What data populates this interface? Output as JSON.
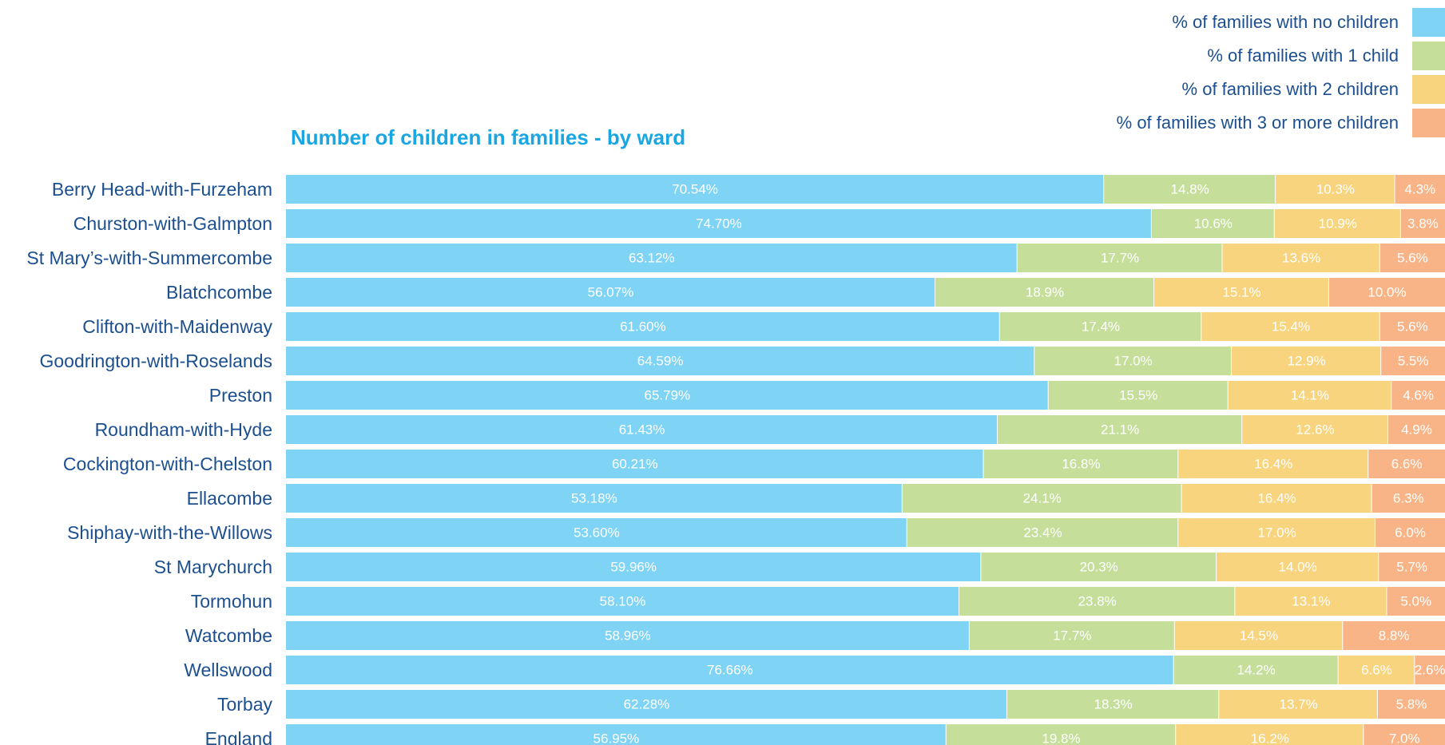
{
  "chart_data": {
    "type": "bar",
    "orientation": "horizontal",
    "stacked": true,
    "title": "Number of children in families - by ward",
    "categories": [
      "Berry Head-with-Furzeham",
      "Churston-with-Galmpton",
      "St Mary’s-with-Summercombe",
      "Blatchcombe",
      "Clifton-with-Maidenway",
      "Goodrington-with-Roselands",
      "Preston",
      "Roundham-with-Hyde",
      "Cockington-with-Chelston",
      "Ellacombe",
      "Shiphay-with-the-Willows",
      "St Marychurch",
      "Tormohun",
      "Watcombe",
      "Wellswood",
      "Torbay",
      "England"
    ],
    "series": [
      {
        "name": "% of families with no children",
        "color": "#7fd4f5",
        "values": [
          70.54,
          74.7,
          63.12,
          56.07,
          61.6,
          64.59,
          65.79,
          61.43,
          60.21,
          53.18,
          53.6,
          59.96,
          58.1,
          58.96,
          76.66,
          62.28,
          56.95
        ],
        "labels": [
          "70.54%",
          "74.70%",
          "63.12%",
          "56.07%",
          "61.60%",
          "64.59%",
          "65.79%",
          "61.43%",
          "60.21%",
          "53.18%",
          "53.60%",
          "59.96%",
          "58.10%",
          "58.96%",
          "76.66%",
          "62.28%",
          "56.95%"
        ]
      },
      {
        "name": "% of families with 1 child",
        "color": "#c5df9b",
        "values": [
          14.8,
          10.6,
          17.7,
          18.9,
          17.4,
          17.0,
          15.5,
          21.1,
          16.8,
          24.1,
          23.4,
          20.3,
          23.8,
          17.7,
          14.2,
          18.3,
          19.8
        ],
        "labels": [
          "14.8%",
          "10.6%",
          "17.7%",
          "18.9%",
          "17.4%",
          "17.0%",
          "15.5%",
          "21.1%",
          "16.8%",
          "24.1%",
          "23.4%",
          "20.3%",
          "23.8%",
          "17.7%",
          "14.2%",
          "18.3%",
          "19.8%"
        ]
      },
      {
        "name": "% of families with 2 children",
        "color": "#f8d47f",
        "values": [
          10.3,
          10.9,
          13.6,
          15.1,
          15.4,
          12.9,
          14.1,
          12.6,
          16.4,
          16.4,
          17.0,
          14.0,
          13.1,
          14.5,
          6.6,
          13.7,
          16.2
        ],
        "labels": [
          "10.3%",
          "10.9%",
          "13.6%",
          "15.1%",
          "15.4%",
          "12.9%",
          "14.1%",
          "12.6%",
          "16.4%",
          "16.4%",
          "17.0%",
          "14.0%",
          "13.1%",
          "14.5%",
          "6.6%",
          "13.7%",
          "16.2%"
        ]
      },
      {
        "name": "% of families with 3 or more children",
        "color": "#f8b486",
        "values": [
          4.3,
          3.8,
          5.6,
          10.0,
          5.6,
          5.5,
          4.6,
          4.9,
          6.6,
          6.3,
          6.0,
          5.7,
          5.0,
          8.8,
          2.6,
          5.8,
          7.0
        ],
        "labels": [
          "4.3%",
          "3.8%",
          "5.6%",
          "10.0%",
          "5.6%",
          "5.5%",
          "4.6%",
          "4.9%",
          "6.6%",
          "6.3%",
          "6.0%",
          "5.7%",
          "5.0%",
          "8.8%",
          "2.6%",
          "5.8%",
          "7.0%"
        ]
      }
    ],
    "xlim": [
      0,
      100
    ],
    "legend_position": "top-right",
    "grid": false
  }
}
